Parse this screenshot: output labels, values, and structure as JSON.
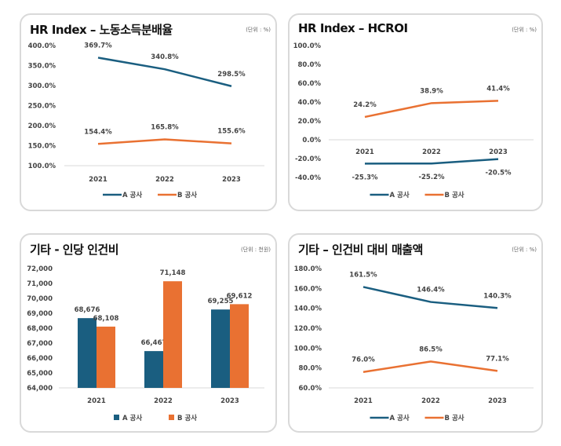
{
  "colors": {
    "A": "#1a5e80",
    "B": "#e97132"
  },
  "chart_data": [
    {
      "type": "line",
      "title": "HR Index – 노동소득분배율",
      "unit": "(단위 : %)",
      "categories": [
        "2021",
        "2022",
        "2023"
      ],
      "ylim": [
        100,
        400
      ],
      "yticks": [
        100,
        150,
        200,
        250,
        300,
        350,
        400
      ],
      "yformat": "pct1",
      "legend": "bottom",
      "series": [
        {
          "name": "A 공사",
          "values": [
            369.7,
            340.8,
            298.5
          ]
        },
        {
          "name": "B 공사",
          "values": [
            154.4,
            165.8,
            155.6
          ]
        }
      ]
    },
    {
      "type": "line",
      "title": "HR Index – HCROI",
      "unit": "(단위 : %)",
      "categories": [
        "2021",
        "2022",
        "2023"
      ],
      "ylim": [
        -40,
        100
      ],
      "yticks": [
        -40,
        -20,
        0,
        20,
        40,
        60,
        80,
        100
      ],
      "yformat": "pct1",
      "legend": "bottom",
      "series": [
        {
          "name": "A 공사",
          "values": [
            -25.3,
            -25.2,
            -20.5
          ]
        },
        {
          "name": "B 공사",
          "values": [
            24.2,
            38.9,
            41.4
          ]
        }
      ]
    },
    {
      "type": "bar",
      "title": "기타 - 인당 인건비",
      "unit": "(단위 : 천원)",
      "categories": [
        "2021",
        "2022",
        "2023"
      ],
      "ylim": [
        64000,
        72000
      ],
      "yticks": [
        64000,
        65000,
        66000,
        67000,
        68000,
        69000,
        70000,
        71000,
        72000
      ],
      "yformat": "int",
      "legend": "bottom",
      "series": [
        {
          "name": "A 공사",
          "values": [
            68676,
            66467,
            69255
          ]
        },
        {
          "name": "B 공사",
          "values": [
            68108,
            71148,
            69612
          ]
        }
      ]
    },
    {
      "type": "line",
      "title": "기타 – 인건비 대비 매출액",
      "unit": "(단위 : %)",
      "categories": [
        "2021",
        "2022",
        "2023"
      ],
      "ylim": [
        60,
        180
      ],
      "yticks": [
        60,
        80,
        100,
        120,
        140,
        160,
        180
      ],
      "yformat": "pct1",
      "legend": "bottom",
      "series": [
        {
          "name": "A 공사",
          "values": [
            161.5,
            146.4,
            140.3
          ]
        },
        {
          "name": "B 공사",
          "values": [
            76.0,
            86.5,
            77.1
          ]
        }
      ]
    }
  ]
}
